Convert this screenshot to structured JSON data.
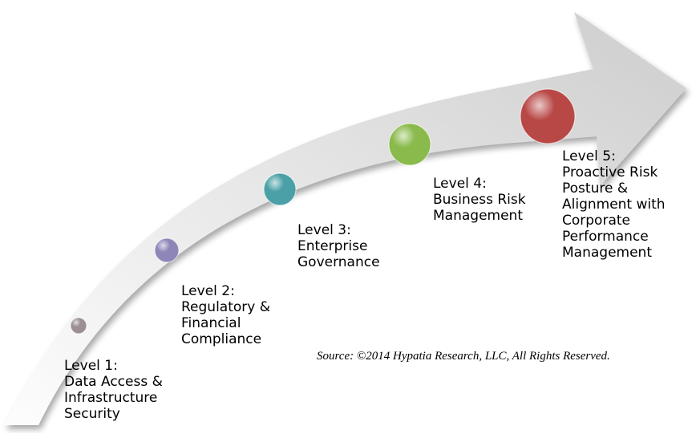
{
  "levels": [
    {
      "lines": [
        "Level 1:",
        "Data Access &",
        "Infrastructure",
        "Security"
      ],
      "color": "#9c8f93"
    },
    {
      "lines": [
        "Level 2:",
        "Regulatory &",
        "Financial",
        "Compliance"
      ],
      "color": "#8f86b8"
    },
    {
      "lines": [
        "Level 3:",
        "Enterprise",
        "Governance"
      ],
      "color": "#4aa0a6"
    },
    {
      "lines": [
        "Level 4:",
        "Business Risk",
        "Management"
      ],
      "color": "#8aba4c"
    },
    {
      "lines": [
        "Level 5:",
        "Proactive Risk",
        "Posture &",
        "Alignment with",
        "Corporate",
        "Performance",
        "Management"
      ],
      "color": "#b84846"
    }
  ],
  "source": "Source: ©2014 Hypatia Research, LLC, All Rights Reserved.",
  "colors": {
    "arrow_light": "#fbfbfb",
    "arrow_dark": "#cfcfcf"
  }
}
